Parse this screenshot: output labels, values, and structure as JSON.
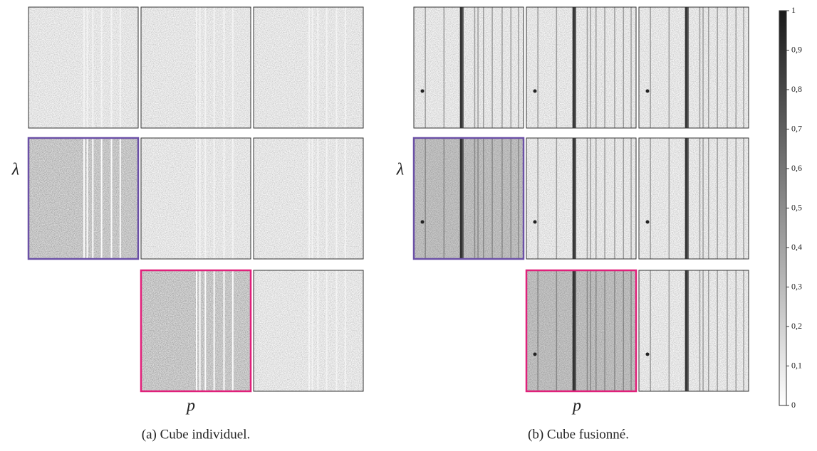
{
  "panels": [
    {
      "y_label": "λ",
      "x_label": "p",
      "caption": "(a) Cube individuel."
    },
    {
      "y_label": "λ",
      "x_label": "p",
      "caption": "(b) Cube fusionné."
    }
  ],
  "colorbar": {
    "range": [
      0,
      1
    ],
    "ticks": [
      0,
      {
        "value": 0.1,
        "label": "0,1"
      },
      {
        "value": 0.2,
        "label": "0,2"
      },
      {
        "value": 0.3,
        "label": "0,3"
      },
      {
        "value": 0.4,
        "label": "0,4"
      },
      {
        "value": 0.5,
        "label": "0,5"
      },
      {
        "value": 0.6,
        "label": "0,6"
      },
      {
        "value": 0.7,
        "label": "0,7"
      },
      {
        "value": 0.8,
        "label": "0,8"
      },
      {
        "value": 0.9,
        "label": "0,9"
      },
      1
    ]
  }
}
